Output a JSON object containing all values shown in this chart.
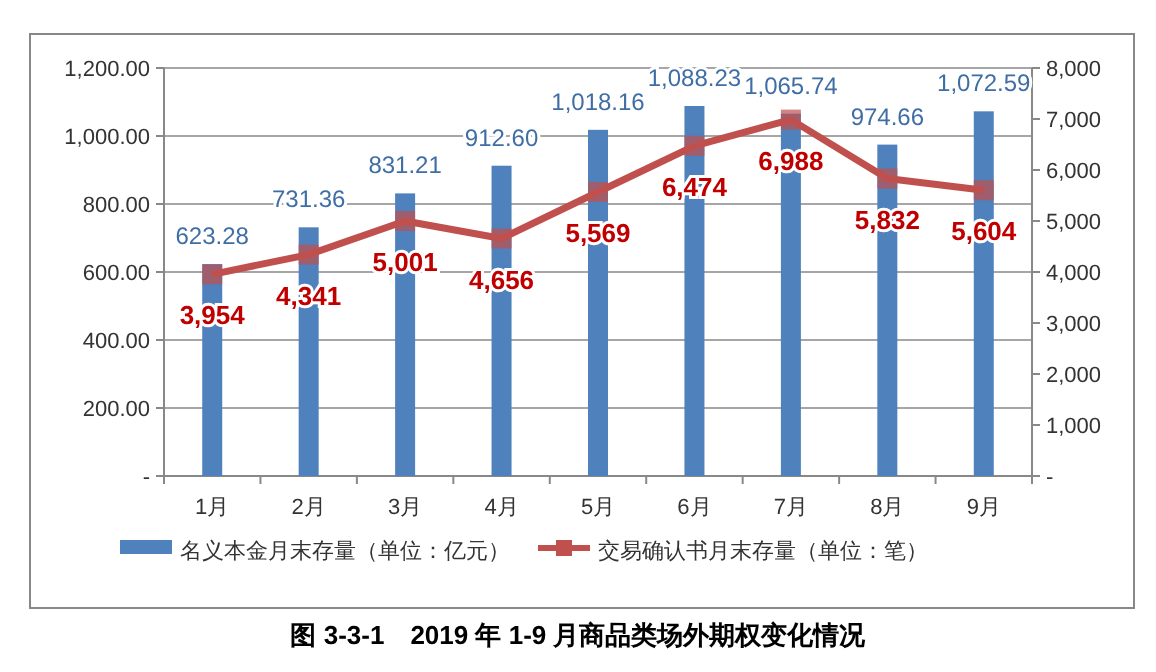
{
  "chart_data": {
    "type": "bar",
    "categories": [
      "1月",
      "2月",
      "3月",
      "4月",
      "5月",
      "6月",
      "7月",
      "8月",
      "9月"
    ],
    "series": [
      {
        "name": "名义本金月末存量（单位：亿元）",
        "color": "#4f81bd",
        "values": [
          623.28,
          731.36,
          831.21,
          912.6,
          1018.16,
          1088.23,
          1065.74,
          974.66,
          1072.59
        ],
        "value_labels": [
          "623.28",
          "731.36",
          "831.21",
          "912.60",
          "1,018.16",
          "1,088.23",
          "1,065.74",
          "974.66",
          "1,072.59"
        ]
      },
      {
        "name": "交易确认书月末存量（单位：笔）",
        "type": "line",
        "axis": "y2",
        "color": "#c0504d",
        "marker": "square",
        "values": [
          3954,
          4341,
          5001,
          4656,
          5569,
          6474,
          6988,
          5832,
          5604
        ],
        "value_labels": [
          "3,954",
          "4,341",
          "5,001",
          "4,656",
          "5,569",
          "6,474",
          "6,988",
          "5,832",
          "5,604"
        ]
      }
    ],
    "ylim": [
      0,
      1200
    ],
    "yticks": [
      {
        "value": 0,
        "label": "-"
      },
      {
        "value": 200,
        "label": "200.00"
      },
      {
        "value": 400,
        "label": "400.00"
      },
      {
        "value": 600,
        "label": "600.00"
      },
      {
        "value": 800,
        "label": "800.00"
      },
      {
        "value": 1000,
        "label": "1,000.00"
      },
      {
        "value": 1200,
        "label": "1,200.00"
      }
    ],
    "y2lim": [
      0,
      8000
    ],
    "y2ticks": [
      {
        "value": 0,
        "label": "-"
      },
      {
        "value": 1000,
        "label": "1,000"
      },
      {
        "value": 2000,
        "label": "2,000"
      },
      {
        "value": 3000,
        "label": "3,000"
      },
      {
        "value": 4000,
        "label": "4,000"
      },
      {
        "value": 5000,
        "label": "5,000"
      },
      {
        "value": 6000,
        "label": "6,000"
      },
      {
        "value": 7000,
        "label": "7,000"
      },
      {
        "value": 8000,
        "label": "8,000"
      }
    ],
    "grid": "y",
    "legend": "bottom",
    "annotations": [
      "图 3-3-1　2019 年 1-9 月商品类场外期权变化情况"
    ]
  }
}
